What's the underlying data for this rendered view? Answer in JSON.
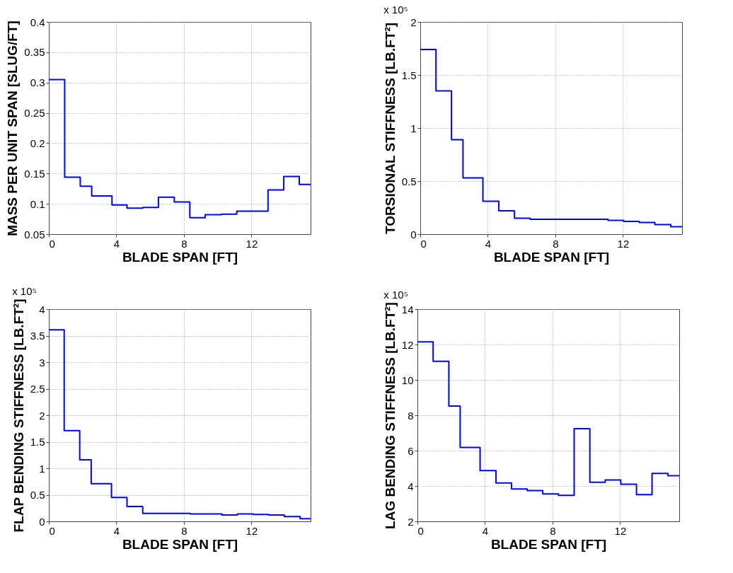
{
  "chart_data": [
    {
      "type": "step",
      "xlabel": "BLADE SPAN [FT]",
      "ylabel": "MASS PER UNIT SPAN [SLUG/FT]",
      "xlim": [
        0,
        15.5
      ],
      "xticks": [
        0,
        4,
        8,
        12
      ],
      "ylim": [
        0.05,
        0.4
      ],
      "yticks": [
        0.05,
        0.1,
        0.15,
        0.2,
        0.25,
        0.3,
        0.35,
        0.4
      ],
      "grid": true,
      "line_style": "solid",
      "marker": "none",
      "series": [
        {
          "color": "#0000ff",
          "x": [
            0,
            0.94,
            1.86,
            2.54,
            3.74,
            4.63,
            5.57,
            6.49,
            7.43,
            8.35,
            9.26,
            10.21,
            11.13,
            12.98,
            13.91,
            14.83,
            15.5
          ],
          "values": [
            0.305,
            0.144,
            0.129,
            0.113,
            0.098,
            0.093,
            0.094,
            0.111,
            0.103,
            0.077,
            0.082,
            0.083,
            0.088,
            0.123,
            0.145,
            0.132,
            0.132
          ]
        }
      ]
    },
    {
      "type": "step",
      "xlabel": "BLADE SPAN [FT]",
      "ylabel": "TORSIONAL STIFFNESS [LB.FT²]",
      "annotations": [
        "x 10⁵"
      ],
      "xlim": [
        0,
        15.5
      ],
      "xticks": [
        0,
        4,
        8,
        12
      ],
      "ylim": [
        0,
        2
      ],
      "yticks": [
        0,
        0.5,
        1,
        1.5,
        2
      ],
      "grid": true,
      "line_style": "solid",
      "marker": "none",
      "series": [
        {
          "color": "#0000ff",
          "x": [
            0,
            0.93,
            1.85,
            2.53,
            3.71,
            4.65,
            5.58,
            6.5,
            10.21,
            11.12,
            12.04,
            12.97,
            13.89,
            14.83,
            15.5
          ],
          "values": [
            1.74,
            1.35,
            0.89,
            0.53,
            0.31,
            0.22,
            0.15,
            0.14,
            0.14,
            0.13,
            0.12,
            0.11,
            0.09,
            0.07,
            0.07
          ]
        }
      ]
    },
    {
      "type": "step",
      "xlabel": "BLADE SPAN [FT]",
      "ylabel": "FLAP BENDING STIFFNESS [LB.FT²]",
      "annotations": [
        "x 10⁵"
      ],
      "xlim": [
        0,
        15.5
      ],
      "xticks": [
        0,
        4,
        8,
        12
      ],
      "ylim": [
        0,
        4
      ],
      "yticks": [
        0,
        0.5,
        1,
        1.5,
        2,
        2.5,
        3,
        3.5,
        4
      ],
      "grid": true,
      "line_style": "solid",
      "marker": "none",
      "series": [
        {
          "color": "#0000ff",
          "x": [
            0,
            0.91,
            1.83,
            2.51,
            3.71,
            4.63,
            5.56,
            7.44,
            8.37,
            10.25,
            11.17,
            12.1,
            13.02,
            13.94,
            14.88,
            15.5
          ],
          "values": [
            3.61,
            1.71,
            1.16,
            0.71,
            0.45,
            0.28,
            0.15,
            0.15,
            0.14,
            0.12,
            0.14,
            0.13,
            0.12,
            0.09,
            0.05,
            0.05
          ]
        }
      ]
    },
    {
      "type": "step",
      "xlabel": "BLADE SPAN [FT]",
      "ylabel": "LAG BENDING STIFFNESS [LB.FT²]",
      "annotations": [
        "x 10⁵"
      ],
      "xlim": [
        0,
        15.5
      ],
      "xticks": [
        0,
        4,
        8,
        12
      ],
      "ylim": [
        2,
        14
      ],
      "yticks": [
        2,
        4,
        6,
        8,
        10,
        12,
        14
      ],
      "grid": true,
      "line_style": "solid",
      "marker": "none",
      "series": [
        {
          "color": "#0000ff",
          "x": [
            0,
            0.93,
            1.86,
            2.53,
            3.71,
            4.65,
            5.57,
            6.5,
            7.42,
            8.35,
            9.28,
            10.21,
            11.12,
            12.04,
            12.97,
            13.89,
            14.83,
            15.5
          ],
          "values": [
            12.15,
            11.05,
            8.52,
            6.18,
            4.87,
            4.17,
            3.83,
            3.74,
            3.55,
            3.47,
            7.24,
            4.21,
            4.34,
            4.1,
            3.51,
            4.71,
            4.58,
            4.58
          ]
        }
      ]
    }
  ]
}
